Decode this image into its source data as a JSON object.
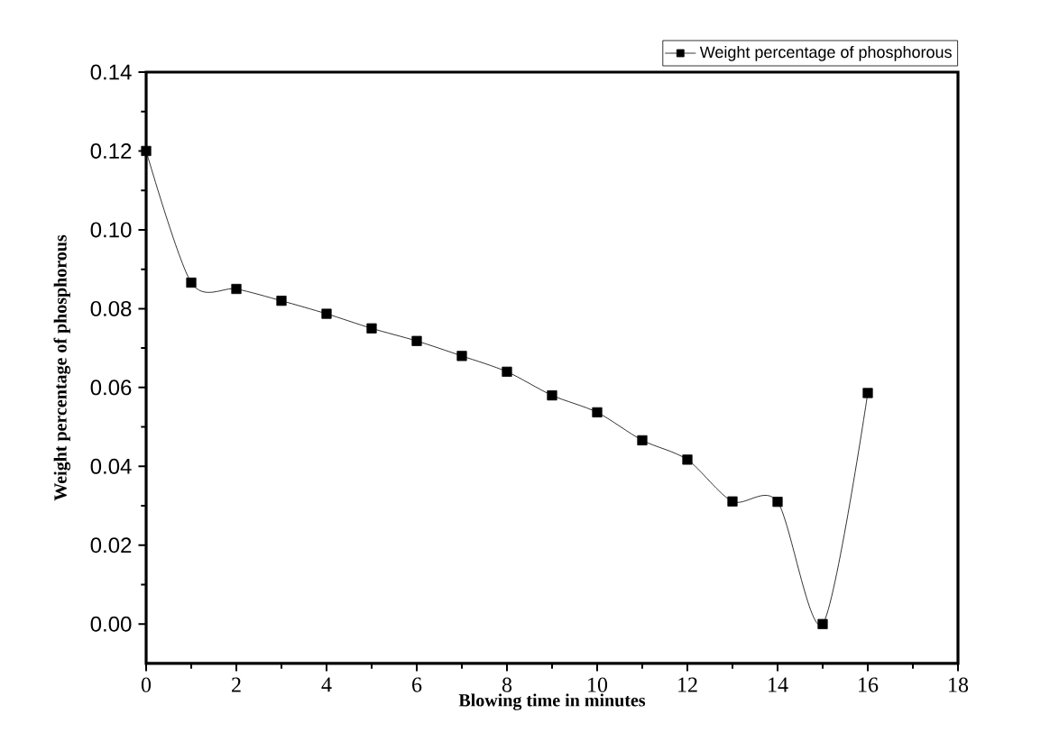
{
  "chart_data": {
    "type": "line",
    "xlabel": "Blowing time in minutes",
    "ylabel": "Weight percentage of phosphorous",
    "x": [
      0,
      1,
      2,
      3,
      4,
      5,
      6,
      7,
      8,
      9,
      10,
      11,
      12,
      13,
      14,
      15,
      16
    ],
    "series": [
      {
        "name": "Weight percentage of phosphorous",
        "color": "#000000",
        "values": [
          0.12,
          0.0866,
          0.085,
          0.082,
          0.0787,
          0.075,
          0.0718,
          0.068,
          0.064,
          0.058,
          0.0537,
          0.0466,
          0.0417,
          0.0311,
          0.031,
          0.0,
          0.0586
        ]
      }
    ],
    "xlim": [
      0,
      18
    ],
    "ylim": [
      -0.01,
      0.14
    ],
    "xticks": [
      0,
      2,
      4,
      6,
      8,
      10,
      12,
      14,
      16,
      18
    ],
    "yticks": [
      {
        "value": 0,
        "label": "0.00"
      },
      {
        "value": 0.02,
        "label": "0.02"
      },
      {
        "value": 0.04,
        "label": "0.04"
      },
      {
        "value": 0.06,
        "label": "0.06"
      },
      {
        "value": 0.08,
        "label": "0.08"
      },
      {
        "value": 0.1,
        "label": "0.10"
      },
      {
        "value": 0.12,
        "label": "0.12"
      },
      {
        "value": 0.14,
        "label": "0.14"
      }
    ],
    "grid": false,
    "legend": "top right",
    "marker": "square",
    "line_style": "solid"
  }
}
